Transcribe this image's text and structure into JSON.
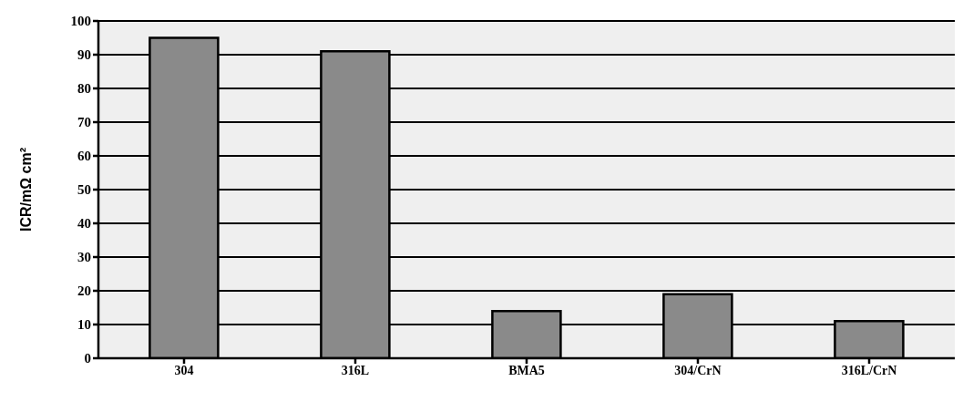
{
  "chart_data": {
    "type": "bar",
    "ylabel": "ICR/mΩ cm²",
    "categories": [
      "304",
      "316L",
      "BMA5",
      "304/CrN",
      "316L/CrN"
    ],
    "values": [
      95,
      91,
      14,
      19,
      11
    ],
    "color": "#8a8a8a",
    "ylim": [
      0,
      100
    ],
    "yticks": [
      0,
      10,
      20,
      30,
      40,
      50,
      60,
      70,
      80,
      90,
      100
    ],
    "grid": "y"
  }
}
